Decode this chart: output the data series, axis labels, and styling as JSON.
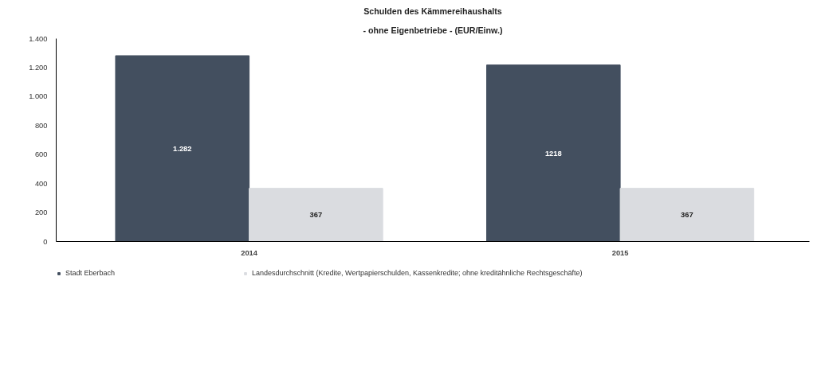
{
  "chart_data": {
    "type": "bar",
    "title": "Schulden des Kämmereihaushalts",
    "subtitle": "- ohne Eigenbetriebe - (EUR/Einw.)",
    "categories": [
      "2014",
      "2015"
    ],
    "series": [
      {
        "name": "Stadt Eberbach",
        "color": "#434f5f",
        "values": [
          1282,
          1218
        ],
        "value_labels": [
          "1.282",
          "1218"
        ]
      },
      {
        "name": "Landesdurchschnitt (Kredite, Wertpapierschulden, Kassenkredite; ohne kreditähnliche Rechtsgeschäfte)",
        "color": "#dadce0",
        "values": [
          367,
          367
        ],
        "value_labels": [
          "367",
          "367"
        ]
      }
    ],
    "ylim": [
      0,
      1400
    ],
    "yticks": [
      0,
      200,
      400,
      600,
      800,
      {
        "value": 1000,
        "label": "1.000"
      },
      {
        "value": 1200,
        "label": "1.200"
      },
      {
        "value": 1400,
        "label": "1.400"
      }
    ],
    "grid": false,
    "legend": "bottom"
  }
}
